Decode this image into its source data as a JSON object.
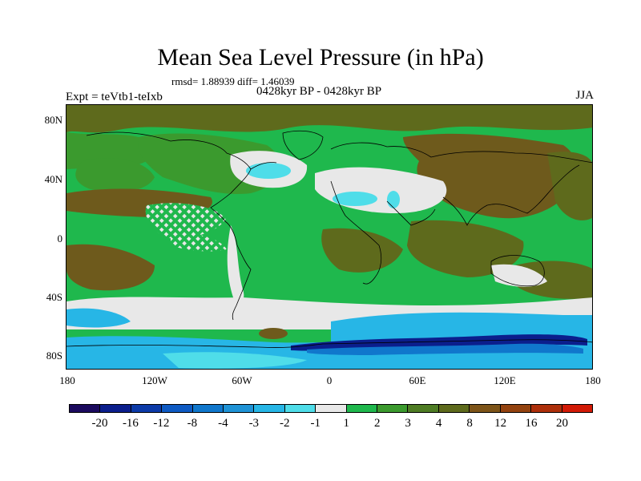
{
  "title": "Mean Sea Level Pressure (in hPa)",
  "stats": "rmsd= 1.88939 diff= 1.46039",
  "subtitle": "0428kyr BP - 0428kyr BP",
  "experiment": "Expt = teVtb1-teIxb",
  "season": "JJA",
  "lat_labels": [
    "80N",
    "40N",
    "0",
    "40S",
    "80S"
  ],
  "lon_labels": [
    "180",
    "120W",
    "60W",
    "0",
    "60E",
    "120E",
    "180"
  ],
  "colorbar": {
    "colors": [
      "#1b0a5e",
      "#0b1e8c",
      "#0c3aa8",
      "#0e5ac3",
      "#1077cc",
      "#1f93d6",
      "#27b6e6",
      "#4fdde9",
      "#e8e8e8",
      "#1fb84d",
      "#3b9a2e",
      "#4e7c24",
      "#5e6a1c",
      "#7d5418",
      "#93420f",
      "#ad2f0a",
      "#d21a06"
    ],
    "labels": [
      "-20",
      "-16",
      "-12",
      "-8",
      "-4",
      "-3",
      "-2",
      "-1",
      "1",
      "2",
      "3",
      "4",
      "8",
      "12",
      "16",
      "20"
    ]
  },
  "map_colors": {
    "base": "#1fb84d",
    "dark_green": "#3b9a2e",
    "olive": "#5e6a1c",
    "brown": "#6e5a1c",
    "white": "#e8e8e8",
    "light_cyan": "#4fdde9",
    "cyan": "#27b6e6",
    "blue": "#1077cc",
    "navy": "#0b1e8c"
  }
}
